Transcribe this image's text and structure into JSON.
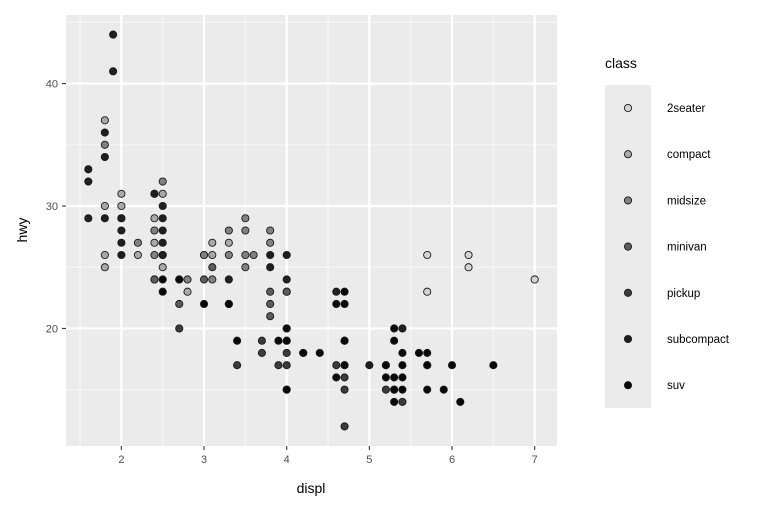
{
  "chart_data": {
    "type": "scatter",
    "xlabel": "displ",
    "ylabel": "hwy",
    "xlim": [
      1.33,
      7.27
    ],
    "ylim": [
      10.4,
      45.6
    ],
    "x_ticks": [
      2,
      3,
      4,
      5,
      6,
      7
    ],
    "y_ticks": [
      20,
      30,
      40
    ],
    "grid": true,
    "legend": {
      "title": "class",
      "placement": "right",
      "entries": [
        {
          "label": "2seater",
          "color": "#d4d4d4"
        },
        {
          "label": "compact",
          "color": "#a9a9a9"
        },
        {
          "label": "midsize",
          "color": "#818181"
        },
        {
          "label": "minivan",
          "color": "#5c5c5c"
        },
        {
          "label": "pickup",
          "color": "#3b3b3b"
        },
        {
          "label": "subcompact",
          "color": "#1f1f1f"
        },
        {
          "label": "suv",
          "color": "#080808"
        }
      ]
    },
    "series": [
      {
        "name": "2seater",
        "points": [
          [
            5.7,
            26
          ],
          [
            5.7,
            23
          ],
          [
            6.2,
            26
          ],
          [
            6.2,
            25
          ],
          [
            7.0,
            24
          ]
        ]
      },
      {
        "name": "compact",
        "points": [
          [
            1.8,
            37
          ],
          [
            1.8,
            30
          ],
          [
            2.0,
            31
          ],
          [
            2.0,
            30
          ],
          [
            2.8,
            23
          ],
          [
            2.5,
            31
          ],
          [
            2.4,
            29
          ],
          [
            3.1,
            27
          ],
          [
            3.3,
            27
          ],
          [
            1.8,
            26
          ],
          [
            1.8,
            25
          ],
          [
            2.0,
            29
          ],
          [
            2.5,
            25
          ],
          [
            2.5,
            26
          ],
          [
            3.0,
            26
          ],
          [
            3.1,
            26
          ],
          [
            2.2,
            26
          ],
          [
            2.4,
            27
          ]
        ]
      },
      {
        "name": "midsize",
        "points": [
          [
            1.8,
            35
          ],
          [
            2.4,
            31
          ],
          [
            2.5,
            32
          ],
          [
            3.5,
            29
          ],
          [
            3.5,
            28
          ],
          [
            3.8,
            28
          ],
          [
            3.8,
            27
          ],
          [
            3.0,
            26
          ],
          [
            2.4,
            26
          ],
          [
            2.4,
            24
          ],
          [
            3.3,
            28
          ],
          [
            3.3,
            26
          ],
          [
            2.2,
            27
          ],
          [
            2.4,
            28
          ],
          [
            3.5,
            26
          ],
          [
            3.6,
            26
          ],
          [
            3.5,
            25
          ],
          [
            2.8,
            24
          ],
          [
            3.1,
            24
          ],
          [
            4.0,
            23
          ]
        ]
      },
      {
        "name": "minivan",
        "points": [
          [
            2.4,
            24
          ],
          [
            3.0,
            24
          ],
          [
            3.3,
            22
          ],
          [
            3.8,
            22
          ],
          [
            4.0,
            23
          ],
          [
            3.8,
            21
          ],
          [
            3.8,
            23
          ],
          [
            2.7,
            22
          ],
          [
            3.1,
            25
          ]
        ]
      },
      {
        "name": "pickup",
        "points": [
          [
            2.7,
            20
          ],
          [
            3.7,
            19
          ],
          [
            4.0,
            20
          ],
          [
            4.7,
            19
          ],
          [
            4.7,
            17
          ],
          [
            5.2,
            17
          ],
          [
            5.7,
            17
          ],
          [
            3.9,
            17
          ],
          [
            4.7,
            16
          ],
          [
            5.2,
            15
          ],
          [
            4.7,
            15
          ],
          [
            4.0,
            15
          ],
          [
            4.7,
            12
          ],
          [
            5.3,
            15
          ],
          [
            5.4,
            14
          ],
          [
            4.2,
            18
          ],
          [
            4.0,
            18
          ],
          [
            4.6,
            17
          ],
          [
            2.7,
            24
          ],
          [
            3.4,
            17
          ],
          [
            4.0,
            17
          ],
          [
            3.7,
            18
          ]
        ]
      },
      {
        "name": "subcompact",
        "points": [
          [
            1.9,
            44
          ],
          [
            1.8,
            36
          ],
          [
            1.9,
            41
          ],
          [
            1.6,
            33
          ],
          [
            1.6,
            32
          ],
          [
            1.6,
            29
          ],
          [
            1.8,
            34
          ],
          [
            2.0,
            29
          ],
          [
            2.0,
            28
          ],
          [
            2.0,
            26
          ],
          [
            2.5,
            26
          ],
          [
            2.5,
            28
          ],
          [
            2.5,
            29
          ],
          [
            2.5,
            27
          ],
          [
            2.0,
            27
          ],
          [
            3.8,
            26
          ],
          [
            3.8,
            25
          ],
          [
            4.0,
            26
          ],
          [
            4.6,
            23
          ],
          [
            5.4,
            20
          ],
          [
            4.0,
            24
          ],
          [
            5.0,
            17
          ],
          [
            2.4,
            31
          ],
          [
            1.8,
            29
          ],
          [
            2.5,
            30
          ],
          [
            3.3,
            24
          ]
        ]
      },
      {
        "name": "suv",
        "points": [
          [
            5.3,
            20
          ],
          [
            5.7,
            18
          ],
          [
            6.0,
            17
          ],
          [
            6.5,
            17
          ],
          [
            4.2,
            18
          ],
          [
            4.4,
            18
          ],
          [
            5.2,
            17
          ],
          [
            3.9,
            19
          ],
          [
            4.7,
            19
          ],
          [
            5.7,
            15
          ],
          [
            6.1,
            14
          ],
          [
            4.6,
            16
          ],
          [
            5.4,
            18
          ],
          [
            5.4,
            17
          ],
          [
            5.3,
            16
          ],
          [
            5.3,
            19
          ],
          [
            4.0,
            20
          ],
          [
            4.0,
            19
          ],
          [
            4.6,
            22
          ],
          [
            4.7,
            22
          ],
          [
            4.7,
            23
          ],
          [
            5.4,
            15
          ],
          [
            5.6,
            18
          ],
          [
            5.9,
            15
          ],
          [
            5.2,
            16
          ],
          [
            2.5,
            23
          ],
          [
            2.5,
            24
          ],
          [
            3.0,
            22
          ],
          [
            3.4,
            19
          ],
          [
            4.0,
            19
          ],
          [
            3.3,
            22
          ],
          [
            2.7,
            24
          ],
          [
            4.7,
            17
          ],
          [
            5.3,
            15
          ],
          [
            5.3,
            14
          ],
          [
            5.4,
            16
          ],
          [
            5.7,
            17
          ],
          [
            4.0,
            15
          ]
        ]
      }
    ]
  }
}
